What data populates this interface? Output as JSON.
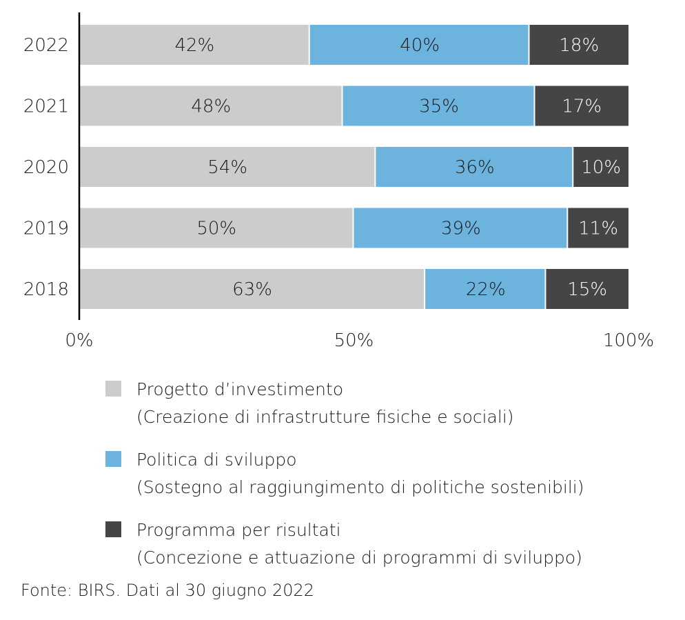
{
  "chart_data": {
    "type": "bar",
    "orientation": "horizontal",
    "stacked": true,
    "categories": [
      "2022",
      "2021",
      "2020",
      "2019",
      "2018"
    ],
    "series": [
      {
        "name": "Progetto d’investimento",
        "values": [
          42,
          48,
          54,
          50,
          63
        ],
        "labels": [
          "42%",
          "48%",
          "54%",
          "50%",
          "63%"
        ],
        "color": "#cccccc",
        "text_color": "#1a1a1a"
      },
      {
        "name": "Politica di sviluppo",
        "values": [
          40,
          35,
          36,
          39,
          22
        ],
        "labels": [
          "40%",
          "35%",
          "36%",
          "39%",
          "22%"
        ],
        "color": "#6cb4de",
        "text_color": "#1a1a1a"
      },
      {
        "name": "Programma per risultati",
        "values": [
          18,
          17,
          10,
          11,
          15
        ],
        "labels": [
          "18%",
          "17%",
          "10%",
          "11%",
          "15%"
        ],
        "color": "#454545",
        "text_color": "#ffffff"
      }
    ],
    "x_ticks": [
      "0%",
      "50%",
      "100%"
    ],
    "xlim": [
      0,
      100
    ],
    "grid": false,
    "legend_position": "bottom"
  },
  "legend": [
    {
      "line1": "Progetto d’investimento",
      "line2": "(Creazione di infrastrutture fisiche e sociali)",
      "color": "#cccccc"
    },
    {
      "line1": "Politica di sviluppo",
      "line2": "(Sostegno al raggiungimento di politiche sostenibili)",
      "color": "#6cb4de"
    },
    {
      "line1": "Programma per risultati",
      "line2": "(Concezione e attuazione di programmi di sviluppo)",
      "color": "#454545"
    }
  ],
  "source": "Fonte: BIRS. Dati al 30 giugno 2022"
}
